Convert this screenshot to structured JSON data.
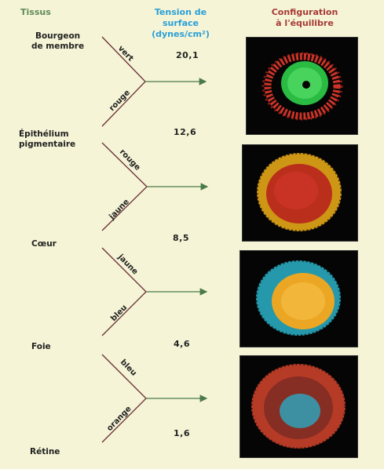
{
  "headers": {
    "tissus": "Tissus",
    "tension_line1": "Tension de surface",
    "tension_line2": "(dynes/cm²)",
    "config_line1": "Configuration",
    "config_line2": "à l'équilibre"
  },
  "tissues": [
    {
      "line1": "Bourgeon",
      "line2": "de membre"
    },
    {
      "line1": "Épithélium",
      "line2": "pigmentaire"
    },
    {
      "line1": "Cœur",
      "line2": ""
    },
    {
      "line1": "Foie",
      "line2": ""
    },
    {
      "line1": "Rétine",
      "line2": ""
    }
  ],
  "tensions": [
    "20,1",
    "12,6",
    "8,5",
    "4,6",
    "1,6"
  ],
  "combinations": [
    {
      "upper": "vert",
      "lower": "rouge",
      "outer_color": "#e03a2c",
      "inner_color": "#2fcf4a"
    },
    {
      "upper": "rouge",
      "lower": "jaune",
      "outer_color": "#f2b019",
      "inner_color": "#b8241c"
    },
    {
      "upper": "jaune",
      "lower": "bleu",
      "outer_color": "#2bb3c9",
      "inner_color": "#f5a81c"
    },
    {
      "upper": "bleu",
      "lower": "orange",
      "outer_color": "#e2492e",
      "inner_color": "#2aa9c0"
    }
  ],
  "colors": {
    "background": "#f5f4d6",
    "arrow": "#4a7a4a",
    "wire": "#6a2f36"
  }
}
